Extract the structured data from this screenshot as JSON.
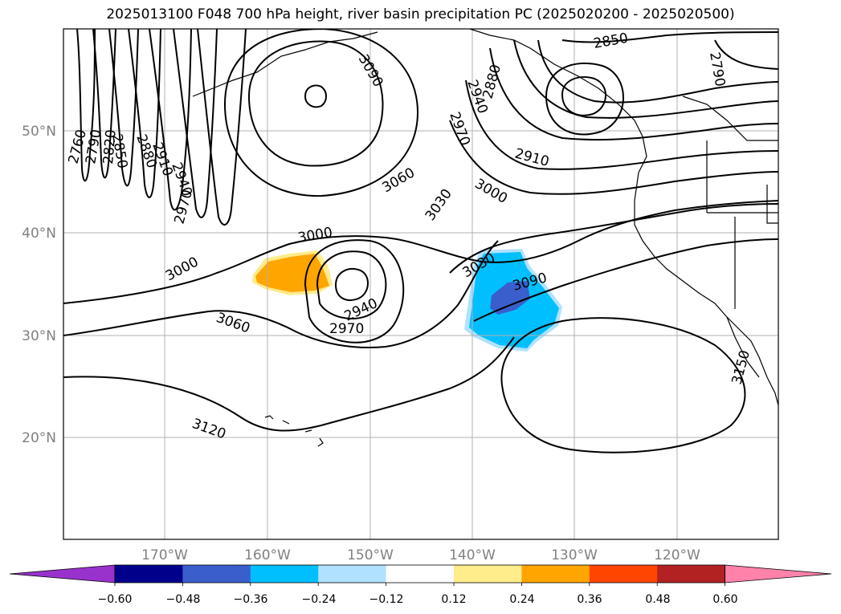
{
  "title": "2025013100 F048 700 hPa height, river basin precipitation PC (2025020200 - 2025020500)",
  "latitude_labels": [
    "50°N",
    "40°N",
    "30°N",
    "20°N"
  ],
  "longitude_labels": [
    "170°W",
    "160°W",
    "150°W",
    "140°W",
    "130°W",
    "120°W"
  ],
  "contour_labels": [
    "2760",
    "2790",
    "2820",
    "2850",
    "2880",
    "2910",
    "2940",
    "2970",
    "3000",
    "3030",
    "3060",
    "3090",
    "3120",
    "3150"
  ],
  "colorbar": {
    "tick_labels": [
      "−0.60",
      "−0.48",
      "−0.36",
      "−0.24",
      "−0.12",
      "0.12",
      "0.24",
      "0.36",
      "0.48",
      "0.60"
    ],
    "colors": [
      "#9932cc",
      "#00008b",
      "#3a5fcd",
      "#00bfff",
      "#b0e2ff",
      "#ffffff",
      "#ffec8b",
      "#ffa500",
      "#ff4500",
      "#b22222",
      "#ff82ab"
    ]
  },
  "precipitation_colors": {
    "dark_blue": "#3a5fcd",
    "blue": "#00bfff",
    "light_blue": "#b0e2ff",
    "orange": "#ffa500",
    "light_yellow": "#ffec8b"
  }
}
